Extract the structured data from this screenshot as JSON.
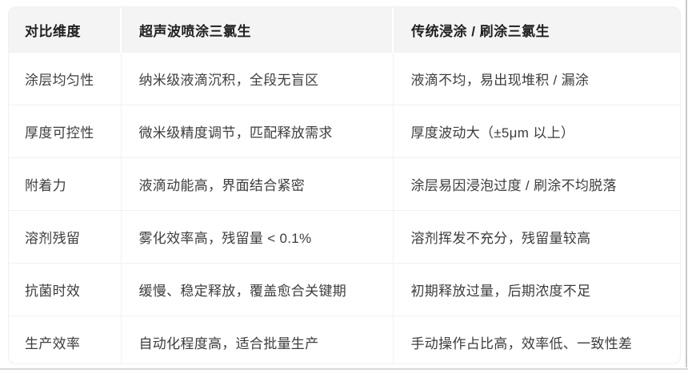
{
  "table": {
    "columns": [
      {
        "label": "对比维度"
      },
      {
        "label": "超声波喷涂三氯生"
      },
      {
        "label": "传统浸涂 / 刷涂三氯生"
      }
    ],
    "rows": [
      {
        "dimension": "涂层均匀性",
        "ultrasonic": "纳米级液滴沉积，全段无盲区",
        "traditional": "液滴不均，易出现堆积 / 漏涂"
      },
      {
        "dimension": "厚度可控性",
        "ultrasonic": "微米级精度调节，匹配释放需求",
        "traditional": "厚度波动大（±5μm 以上）"
      },
      {
        "dimension": "附着力",
        "ultrasonic": "液滴动能高，界面结合紧密",
        "traditional": "涂层易因浸泡过度 / 刷涂不均脱落"
      },
      {
        "dimension": "溶剂残留",
        "ultrasonic": "雾化效率高，残留量 < 0.1%",
        "traditional": "溶剂挥发不充分，残留量较高"
      },
      {
        "dimension": "抗菌时效",
        "ultrasonic": "缓慢、稳定释放，覆盖愈合关键期",
        "traditional": "初期释放过量，后期浓度不足"
      },
      {
        "dimension": "生产效率",
        "ultrasonic": "自动化程度高，适合批量生产",
        "traditional": "手动操作占比高，效率低、一致性差"
      }
    ],
    "colors": {
      "header_bg": "#f4f4f5",
      "body_bg": "#ffffff",
      "grid_line": "#f1f1f2",
      "header_text": "#1f1f1f",
      "body_text": "#3d3d3f"
    }
  }
}
